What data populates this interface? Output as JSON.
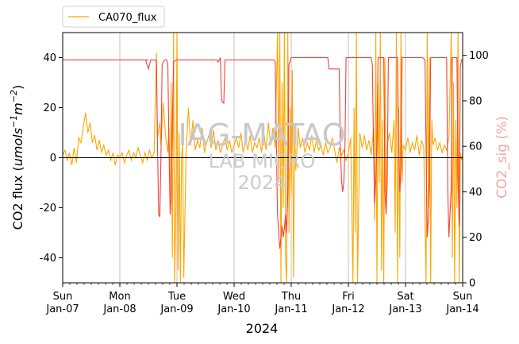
{
  "chart_data": {
    "type": "line",
    "xlabel": "2024",
    "ylabel_left": "CO2 flux (umols⁻¹m⁻²)",
    "ylabel_left_parts": {
      "base": "CO2 flux (",
      "var": "umols",
      "sup1": "−1",
      "var2": "m",
      "sup2": "−2",
      "close": ")"
    },
    "ylabel_right": "CO2_sig (%)",
    "ylim_left": [
      -50,
      50
    ],
    "ylim_right": [
      0,
      110
    ],
    "yticks_left": [
      40,
      20,
      0,
      -20,
      -40
    ],
    "yticks_right": [
      100,
      80,
      60,
      40,
      20,
      0
    ],
    "xlim_days": [
      0,
      7
    ],
    "xticks": [
      {
        "day": 0,
        "weekday": "Sun",
        "date": "Jan-07"
      },
      {
        "day": 1,
        "weekday": "Mon",
        "date": "Jan-08"
      },
      {
        "day": 2,
        "weekday": "Tue",
        "date": "Jan-09"
      },
      {
        "day": 3,
        "weekday": "Wed",
        "date": "Jan-10"
      },
      {
        "day": 4,
        "weekday": "Thu",
        "date": "Jan-11"
      },
      {
        "day": 5,
        "weekday": "Fri",
        "date": "Jan-12"
      },
      {
        "day": 6,
        "weekday": "Sat",
        "date": "Jan-13"
      },
      {
        "day": 7,
        "weekday": "Sun",
        "date": "Jan-14"
      }
    ],
    "grid": "x-major",
    "zero_line": true,
    "legend": {
      "placement": "top-left-outside",
      "label": "CA070_flux"
    },
    "watermark": {
      "line1": "IAG-MATAO",
      "line2": "LAB MICRO",
      "line3": "2024"
    },
    "colors": {
      "flux": "#ffa500",
      "signal": "#f04040",
      "right_axis_label": "#f4a3a3"
    },
    "series": [
      {
        "name": "CA070_flux",
        "axis": "left",
        "points": [
          [
            0.0,
            1
          ],
          [
            0.04,
            3
          ],
          [
            0.08,
            -1
          ],
          [
            0.12,
            2
          ],
          [
            0.16,
            -3
          ],
          [
            0.2,
            4
          ],
          [
            0.24,
            -2
          ],
          [
            0.28,
            8
          ],
          [
            0.32,
            6
          ],
          [
            0.36,
            12
          ],
          [
            0.4,
            18
          ],
          [
            0.44,
            10
          ],
          [
            0.48,
            14
          ],
          [
            0.52,
            6
          ],
          [
            0.56,
            9
          ],
          [
            0.6,
            3
          ],
          [
            0.64,
            7
          ],
          [
            0.68,
            2
          ],
          [
            0.72,
            5
          ],
          [
            0.76,
            1
          ],
          [
            0.8,
            3
          ],
          [
            0.84,
            -1
          ],
          [
            0.88,
            2
          ],
          [
            0.92,
            -3
          ],
          [
            0.96,
            1
          ],
          [
            1.0,
            0
          ],
          [
            1.04,
            2
          ],
          [
            1.08,
            -2
          ],
          [
            1.12,
            1
          ],
          [
            1.16,
            3
          ],
          [
            1.2,
            -1
          ],
          [
            1.24,
            2
          ],
          [
            1.28,
            0
          ],
          [
            1.32,
            4
          ],
          [
            1.36,
            1
          ],
          [
            1.4,
            -2
          ],
          [
            1.44,
            2
          ],
          [
            1.48,
            -1
          ],
          [
            1.52,
            3
          ],
          [
            1.56,
            0
          ],
          [
            1.6,
            2
          ],
          [
            1.64,
            42
          ],
          [
            1.66,
            8
          ],
          [
            1.7,
            14
          ],
          [
            1.72,
            5
          ],
          [
            1.76,
            22
          ],
          [
            1.8,
            9
          ],
          [
            1.84,
            2
          ],
          [
            1.86,
            12
          ],
          [
            1.88,
            -15
          ],
          [
            1.9,
            30
          ],
          [
            1.92,
            -40
          ],
          [
            1.94,
            52
          ],
          [
            1.96,
            -52
          ],
          [
            1.98,
            -20
          ],
          [
            2.0,
            52
          ],
          [
            2.02,
            -45
          ],
          [
            2.04,
            10
          ],
          [
            2.06,
            -52
          ],
          [
            2.08,
            0
          ],
          [
            2.1,
            5
          ],
          [
            2.12,
            -48
          ],
          [
            2.16,
            2
          ],
          [
            2.2,
            20
          ],
          [
            2.24,
            5
          ],
          [
            2.28,
            15
          ],
          [
            2.32,
            3
          ],
          [
            2.36,
            7
          ],
          [
            2.4,
            4
          ],
          [
            2.44,
            12
          ],
          [
            2.48,
            2
          ],
          [
            2.52,
            6
          ],
          [
            2.56,
            9
          ],
          [
            2.6,
            4
          ],
          [
            2.64,
            11
          ],
          [
            2.68,
            3
          ],
          [
            2.72,
            7
          ],
          [
            2.76,
            2
          ],
          [
            2.8,
            5
          ],
          [
            2.84,
            8
          ],
          [
            2.88,
            3
          ],
          [
            2.92,
            7
          ],
          [
            2.96,
            2
          ],
          [
            3.0,
            5
          ],
          [
            3.04,
            8
          ],
          [
            3.08,
            4
          ],
          [
            3.12,
            10
          ],
          [
            3.16,
            2
          ],
          [
            3.2,
            7
          ],
          [
            3.24,
            3
          ],
          [
            3.28,
            9
          ],
          [
            3.32,
            2
          ],
          [
            3.36,
            6
          ],
          [
            3.4,
            4
          ],
          [
            3.44,
            8
          ],
          [
            3.48,
            2
          ],
          [
            3.52,
            10
          ],
          [
            3.56,
            3
          ],
          [
            3.6,
            14
          ],
          [
            3.64,
            5
          ],
          [
            3.68,
            12
          ],
          [
            3.72,
            4
          ],
          [
            3.76,
            52
          ],
          [
            3.78,
            -10
          ],
          [
            3.8,
            52
          ],
          [
            3.82,
            -52
          ],
          [
            3.84,
            30
          ],
          [
            3.86,
            -20
          ],
          [
            3.88,
            52
          ],
          [
            3.9,
            -40
          ],
          [
            3.92,
            -52
          ],
          [
            3.94,
            52
          ],
          [
            3.96,
            -30
          ],
          [
            3.98,
            20
          ],
          [
            4.0,
            -15
          ],
          [
            4.02,
            35
          ],
          [
            4.04,
            -48
          ],
          [
            4.06,
            10
          ],
          [
            4.08,
            -5
          ],
          [
            4.12,
            12
          ],
          [
            4.16,
            4
          ],
          [
            4.2,
            8
          ],
          [
            4.24,
            2
          ],
          [
            4.28,
            6
          ],
          [
            4.32,
            3
          ],
          [
            4.36,
            9
          ],
          [
            4.4,
            2
          ],
          [
            4.44,
            7
          ],
          [
            4.48,
            3
          ],
          [
            4.52,
            5
          ],
          [
            4.56,
            1
          ],
          [
            4.6,
            6
          ],
          [
            4.64,
            2
          ],
          [
            4.68,
            4
          ],
          [
            4.72,
            8
          ],
          [
            4.76,
            3
          ],
          [
            4.8,
            -2
          ],
          [
            4.84,
            4
          ],
          [
            4.88,
            1
          ],
          [
            4.92,
            3
          ],
          [
            4.96,
            -1
          ],
          [
            5.0,
            2
          ],
          [
            5.04,
            8
          ],
          [
            5.08,
            -52
          ],
          [
            5.1,
            20
          ],
          [
            5.12,
            -30
          ],
          [
            5.14,
            52
          ],
          [
            5.16,
            -52
          ],
          [
            5.2,
            10
          ],
          [
            5.24,
            4
          ],
          [
            5.28,
            9
          ],
          [
            5.32,
            3
          ],
          [
            5.36,
            7
          ],
          [
            5.4,
            1
          ],
          [
            5.44,
            12
          ],
          [
            5.46,
            -25
          ],
          [
            5.48,
            52
          ],
          [
            5.5,
            -52
          ],
          [
            5.52,
            30
          ],
          [
            5.54,
            -10
          ],
          [
            5.56,
            52
          ],
          [
            5.58,
            -45
          ],
          [
            5.6,
            15
          ],
          [
            5.62,
            -52
          ],
          [
            5.64,
            40
          ],
          [
            5.66,
            -20
          ],
          [
            5.68,
            5
          ],
          [
            5.72,
            10
          ],
          [
            5.76,
            2
          ],
          [
            5.8,
            15
          ],
          [
            5.82,
            -30
          ],
          [
            5.84,
            52
          ],
          [
            5.86,
            -52
          ],
          [
            5.88,
            20
          ],
          [
            5.9,
            -40
          ],
          [
            5.92,
            52
          ],
          [
            5.94,
            -10
          ],
          [
            5.96,
            5
          ],
          [
            6.0,
            3
          ],
          [
            6.04,
            8
          ],
          [
            6.08,
            2
          ],
          [
            6.12,
            6
          ],
          [
            6.16,
            3
          ],
          [
            6.2,
            9
          ],
          [
            6.24,
            1
          ],
          [
            6.28,
            7
          ],
          [
            6.32,
            4
          ],
          [
            6.36,
            -52
          ],
          [
            6.38,
            52
          ],
          [
            6.4,
            -20
          ],
          [
            6.42,
            40
          ],
          [
            6.44,
            -52
          ],
          [
            6.46,
            15
          ],
          [
            6.48,
            5
          ],
          [
            6.52,
            8
          ],
          [
            6.56,
            3
          ],
          [
            6.6,
            6
          ],
          [
            6.64,
            2
          ],
          [
            6.68,
            5
          ],
          [
            6.72,
            3
          ],
          [
            6.76,
            8
          ],
          [
            6.8,
            52
          ],
          [
            6.82,
            -40
          ],
          [
            6.84,
            30
          ],
          [
            6.86,
            -52
          ],
          [
            6.88,
            15
          ],
          [
            6.9,
            -20
          ],
          [
            6.92,
            52
          ],
          [
            6.94,
            -52
          ],
          [
            6.96,
            2
          ],
          [
            6.98,
            -1
          ],
          [
            7.0,
            1
          ]
        ]
      },
      {
        "name": "CO2_sig",
        "axis": "right",
        "points": [
          [
            0.0,
            98
          ],
          [
            0.5,
            98
          ],
          [
            1.0,
            98
          ],
          [
            1.5,
            98
          ],
          [
            1.45,
            98
          ],
          [
            1.5,
            94
          ],
          [
            1.54,
            98
          ],
          [
            1.62,
            98
          ],
          [
            1.64,
            97
          ],
          [
            1.66,
            60
          ],
          [
            1.68,
            30
          ],
          [
            1.7,
            29
          ],
          [
            1.72,
            55
          ],
          [
            1.74,
            96
          ],
          [
            1.78,
            98
          ],
          [
            1.82,
            98
          ],
          [
            1.84,
            96
          ],
          [
            1.86,
            60
          ],
          [
            1.88,
            30
          ],
          [
            1.9,
            40
          ],
          [
            1.92,
            70
          ],
          [
            1.94,
            97
          ],
          [
            1.98,
            98
          ],
          [
            2.5,
            98
          ],
          [
            2.7,
            98
          ],
          [
            2.72,
            97
          ],
          [
            2.74,
            98
          ],
          [
            2.76,
            99
          ],
          [
            2.78,
            80
          ],
          [
            2.82,
            79
          ],
          [
            2.84,
            98
          ],
          [
            3.0,
            98
          ],
          [
            3.5,
            98
          ],
          [
            3.7,
            98
          ],
          [
            3.72,
            97
          ],
          [
            3.74,
            60
          ],
          [
            3.76,
            30
          ],
          [
            3.8,
            15
          ],
          [
            3.84,
            25
          ],
          [
            3.86,
            20
          ],
          [
            3.88,
            24
          ],
          [
            3.9,
            30
          ],
          [
            3.92,
            22
          ],
          [
            3.94,
            40
          ],
          [
            3.96,
            96
          ],
          [
            4.0,
            99
          ],
          [
            4.4,
            99
          ],
          [
            4.6,
            99
          ],
          [
            4.64,
            99
          ],
          [
            4.66,
            94
          ],
          [
            4.7,
            94
          ],
          [
            4.84,
            94
          ],
          [
            4.86,
            60
          ],
          [
            4.88,
            45
          ],
          [
            4.9,
            40
          ],
          [
            4.92,
            44
          ],
          [
            4.94,
            60
          ],
          [
            4.96,
            99
          ],
          [
            5.2,
            99
          ],
          [
            5.4,
            99
          ],
          [
            5.42,
            96
          ],
          [
            5.44,
            60
          ],
          [
            5.46,
            35
          ],
          [
            5.48,
            45
          ],
          [
            5.5,
            62
          ],
          [
            5.52,
            99
          ],
          [
            5.62,
            99
          ],
          [
            5.64,
            40
          ],
          [
            5.66,
            30
          ],
          [
            5.68,
            45
          ],
          [
            5.7,
            99
          ],
          [
            5.86,
            99
          ],
          [
            5.88,
            60
          ],
          [
            5.9,
            40
          ],
          [
            5.92,
            50
          ],
          [
            5.94,
            99
          ],
          [
            6.0,
            99
          ],
          [
            6.3,
            99
          ],
          [
            6.34,
            98
          ],
          [
            6.36,
            60
          ],
          [
            6.38,
            20
          ],
          [
            6.4,
            28
          ],
          [
            6.42,
            45
          ],
          [
            6.44,
            99
          ],
          [
            6.6,
            99
          ],
          [
            6.72,
            99
          ],
          [
            6.74,
            40
          ],
          [
            6.76,
            20
          ],
          [
            6.8,
            42
          ],
          [
            6.82,
            99
          ],
          [
            6.9,
            99
          ],
          [
            6.92,
            45
          ],
          [
            6.94,
            25
          ],
          [
            6.96,
            95
          ],
          [
            6.98,
            98
          ],
          [
            7.0,
            98
          ]
        ]
      }
    ]
  }
}
